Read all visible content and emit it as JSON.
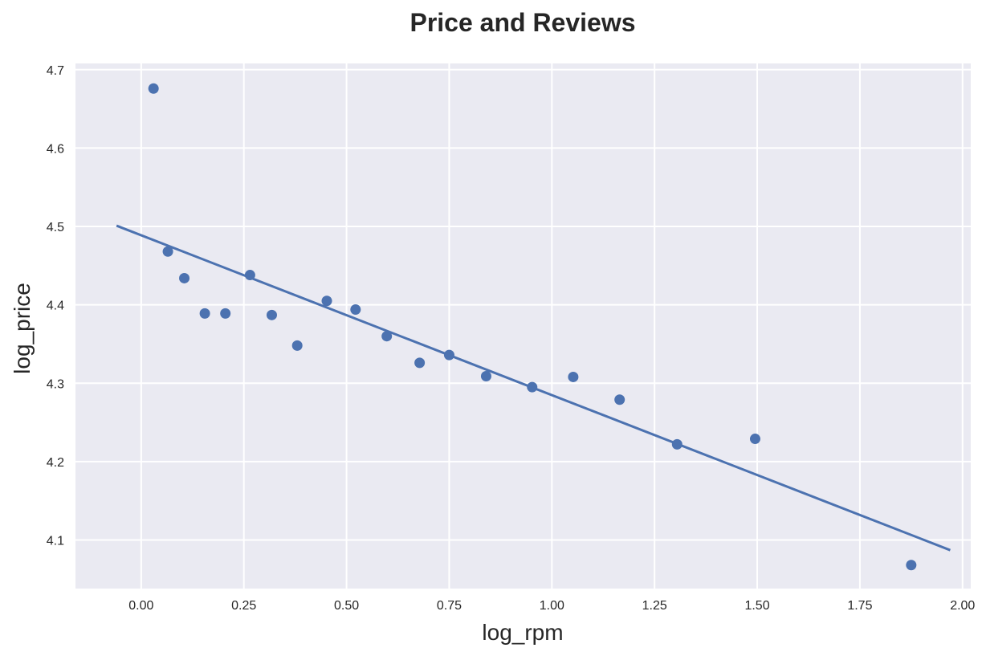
{
  "chart_data": {
    "type": "scatter",
    "title": "Price and Reviews",
    "xlabel": "log_rpm",
    "ylabel": "log_price",
    "xlim": [
      -0.16,
      2.02
    ],
    "ylim": [
      4.038,
      4.708
    ],
    "x_ticks": [
      0.0,
      0.25,
      0.5,
      0.75,
      1.0,
      1.25,
      1.5,
      1.75,
      2.0
    ],
    "x_tick_labels": [
      "0.00",
      "0.25",
      "0.50",
      "0.75",
      "1.00",
      "1.25",
      "1.50",
      "1.75",
      "2.00"
    ],
    "y_ticks": [
      4.1,
      4.2,
      4.3,
      4.4,
      4.5,
      4.6,
      4.7
    ],
    "y_tick_labels": [
      "4.1",
      "4.2",
      "4.3",
      "4.4",
      "4.5",
      "4.6",
      "4.7"
    ],
    "grid": true,
    "style": {
      "background": "#eaeaf2",
      "grid_color": "#ffffff",
      "marker_color": "#4c72b0",
      "line_color": "#4c72b0"
    },
    "series": [
      {
        "kind": "points",
        "x": [
          0.03,
          0.065,
          0.105,
          0.155,
          0.205,
          0.265,
          0.318,
          0.38,
          0.452,
          0.522,
          0.598,
          0.678,
          0.75,
          0.84,
          0.952,
          1.052,
          1.165,
          1.305,
          1.495,
          1.875
        ],
        "y": [
          4.676,
          4.468,
          4.434,
          4.389,
          4.389,
          4.438,
          4.387,
          4.348,
          4.405,
          4.394,
          4.36,
          4.326,
          4.336,
          4.309,
          4.295,
          4.308,
          4.279,
          4.222,
          4.229,
          4.068
        ]
      },
      {
        "kind": "fit_line",
        "x": [
          -0.06,
          1.97
        ],
        "y": [
          4.501,
          4.087
        ]
      }
    ]
  }
}
